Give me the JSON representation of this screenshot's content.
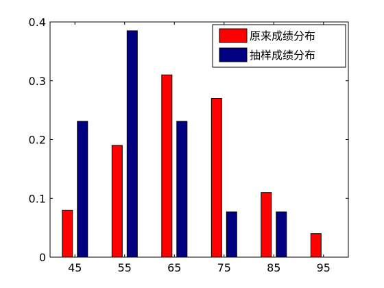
{
  "chart_data": {
    "type": "bar",
    "title": "",
    "xlabel": "",
    "ylabel": "",
    "categories": [
      "45",
      "55",
      "65",
      "75",
      "85",
      "95"
    ],
    "x": [
      45,
      55,
      65,
      75,
      85,
      95
    ],
    "series": [
      {
        "name": "原来成绩分布",
        "color": "#ff0000",
        "values": [
          0.08,
          0.19,
          0.31,
          0.27,
          0.11,
          0.04
        ]
      },
      {
        "name": "抽样成绩分布",
        "color": "#000080",
        "values": [
          0.231,
          0.385,
          0.231,
          0.077,
          0.077,
          0
        ]
      }
    ],
    "xlim": [
      40,
      100
    ],
    "ylim": [
      0,
      0.4
    ],
    "yticks": [
      0,
      0.1,
      0.2,
      0.3,
      0.4
    ],
    "ytick_labels": [
      "0",
      "0.1",
      "0.2",
      "0.3",
      "0.4"
    ],
    "grid": false,
    "legend_position": "top-right"
  }
}
